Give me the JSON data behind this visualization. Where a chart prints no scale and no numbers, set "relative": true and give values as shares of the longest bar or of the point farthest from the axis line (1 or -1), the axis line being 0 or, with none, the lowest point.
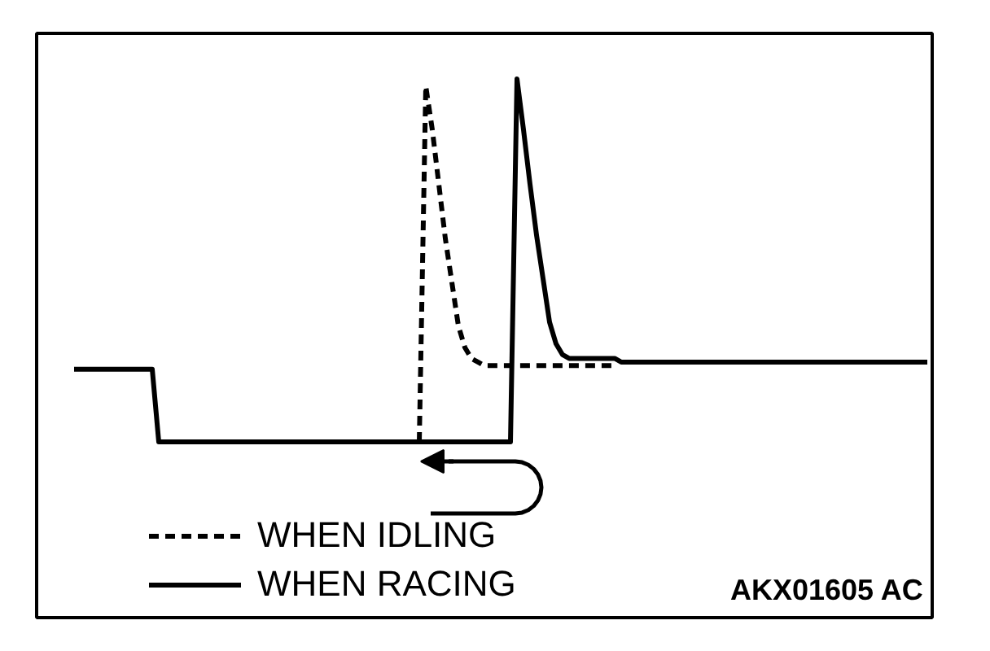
{
  "chart_data": {
    "type": "line",
    "relative": true,
    "legend": "bottom left",
    "annotations": [
      "AKX01605 AC"
    ],
    "categories": [
      null,
      null,
      null,
      null,
      null,
      null,
      null,
      null,
      null,
      null,
      null,
      null,
      null,
      null,
      null,
      null,
      null,
      null,
      null,
      null,
      null,
      null,
      null,
      null,
      null,
      null,
      null,
      null,
      null,
      null,
      null,
      null,
      null,
      null,
      null,
      null,
      null,
      null,
      null,
      null,
      null,
      null,
      null,
      null,
      null,
      null,
      null,
      null,
      null,
      null,
      null,
      null,
      null,
      null,
      null,
      null,
      null,
      null,
      null,
      null,
      null,
      null,
      null,
      null,
      null,
      null,
      null,
      null,
      null,
      null,
      null,
      null,
      null,
      null,
      null,
      null,
      null,
      null,
      null,
      null,
      null,
      null,
      null,
      null,
      null,
      null,
      null,
      null,
      null,
      null,
      null,
      null,
      null,
      null,
      null,
      null,
      null,
      null,
      null,
      null,
      null,
      null,
      null,
      null,
      null,
      null,
      null,
      null,
      null,
      null,
      null,
      null,
      null,
      null,
      null,
      null,
      null,
      null,
      null,
      null,
      null,
      null,
      null,
      null,
      null,
      null,
      null,
      null,
      null,
      null,
      null,
      null
    ],
    "series": [
      {
        "name": "WHEN IDLING",
        "color": "#000000",
        "line_style": "dashed",
        "values": [
          null,
          null,
          null,
          null,
          null,
          null,
          null,
          null,
          null,
          null,
          null,
          null,
          null,
          null,
          null,
          null,
          null,
          null,
          null,
          null,
          null,
          null,
          null,
          null,
          null,
          null,
          null,
          null,
          null,
          null,
          null,
          null,
          null,
          null,
          null,
          null,
          null,
          null,
          null,
          null,
          null,
          null,
          null,
          null,
          null,
          null,
          null,
          null,
          null,
          null,
          null,
          null,
          null,
          0,
          0.98,
          0.86,
          0.71,
          0.56,
          0.44,
          0.32,
          0.26,
          0.23,
          0.22,
          0.21,
          0.21,
          0.21,
          0.21,
          0.21,
          0.21,
          0.21,
          0.21,
          0.21,
          0.21,
          0.21,
          0.21,
          0.21,
          0.21,
          0.21,
          0.21,
          0.21,
          0.21,
          0.21,
          0.21,
          0.21,
          null,
          null,
          null,
          null,
          null,
          null,
          null,
          null,
          null,
          null,
          null,
          null,
          null,
          null,
          null,
          null,
          null,
          null,
          null,
          null,
          null,
          null,
          null,
          null,
          null,
          null,
          null,
          null,
          null,
          null,
          null,
          null,
          null,
          null,
          null,
          null,
          null,
          null,
          null,
          null,
          null,
          null,
          null,
          null,
          null,
          null,
          null,
          null
        ]
      },
      {
        "name": "WHEN RACING",
        "color": "#000000",
        "line_style": "solid",
        "values": [
          0.2,
          0.2,
          0.2,
          0.2,
          0.2,
          0.2,
          0.2,
          0.2,
          0.2,
          0.2,
          0.2,
          0.2,
          0.2,
          0,
          0,
          0,
          0,
          0,
          0,
          0,
          0,
          0,
          0,
          0,
          0,
          0,
          0,
          0,
          0,
          0,
          0,
          0,
          0,
          0,
          0,
          0,
          0,
          0,
          0,
          0,
          0,
          0,
          0,
          0,
          0,
          0,
          0,
          0,
          0,
          0,
          0,
          0,
          0,
          0,
          0,
          0,
          0,
          0,
          0,
          0,
          0,
          0,
          0,
          0,
          0,
          0,
          0,
          0,
          1,
          0.86,
          0.71,
          0.57,
          0.45,
          0.33,
          0.27,
          0.24,
          0.23,
          0.23,
          0.23,
          0.23,
          0.23,
          0.23,
          0.23,
          0.23,
          0.22,
          0.22,
          0.22,
          0.22,
          0.22,
          0.22,
          0.22,
          0.22,
          0.22,
          0.22,
          0.22,
          0.22,
          0.22,
          0.22,
          0.22,
          0.22,
          0.22,
          0.22,
          0.22,
          0.22,
          0.22,
          0.22,
          0.22,
          0.22,
          0.22,
          0.22,
          0.22,
          0.22,
          0.22,
          0.22,
          0.22,
          0.22,
          0.22,
          0.22,
          0.22,
          0.22,
          0.22,
          0.22,
          0.22,
          0.22,
          0.22,
          0.22,
          0.22,
          0.22,
          0.22,
          0.22,
          0.22,
          0.22
        ]
      }
    ]
  }
}
